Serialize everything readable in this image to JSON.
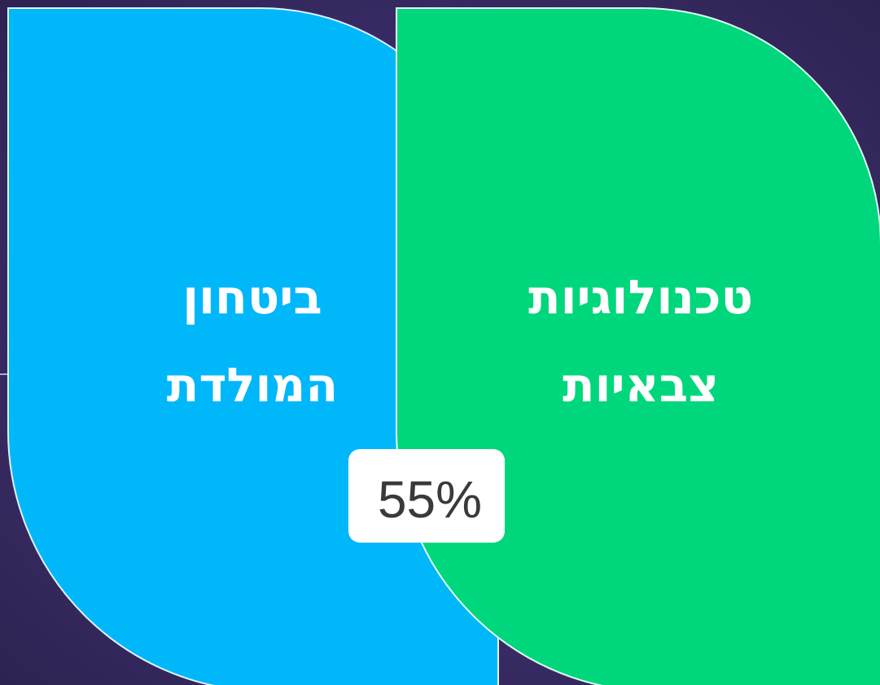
{
  "left": {
    "lines": [
      "ביטחון",
      "המולדת"
    ]
  },
  "right": {
    "lines": [
      "טכנולוגיות",
      "צבאיות"
    ]
  },
  "badge": {
    "text": "55%"
  }
}
